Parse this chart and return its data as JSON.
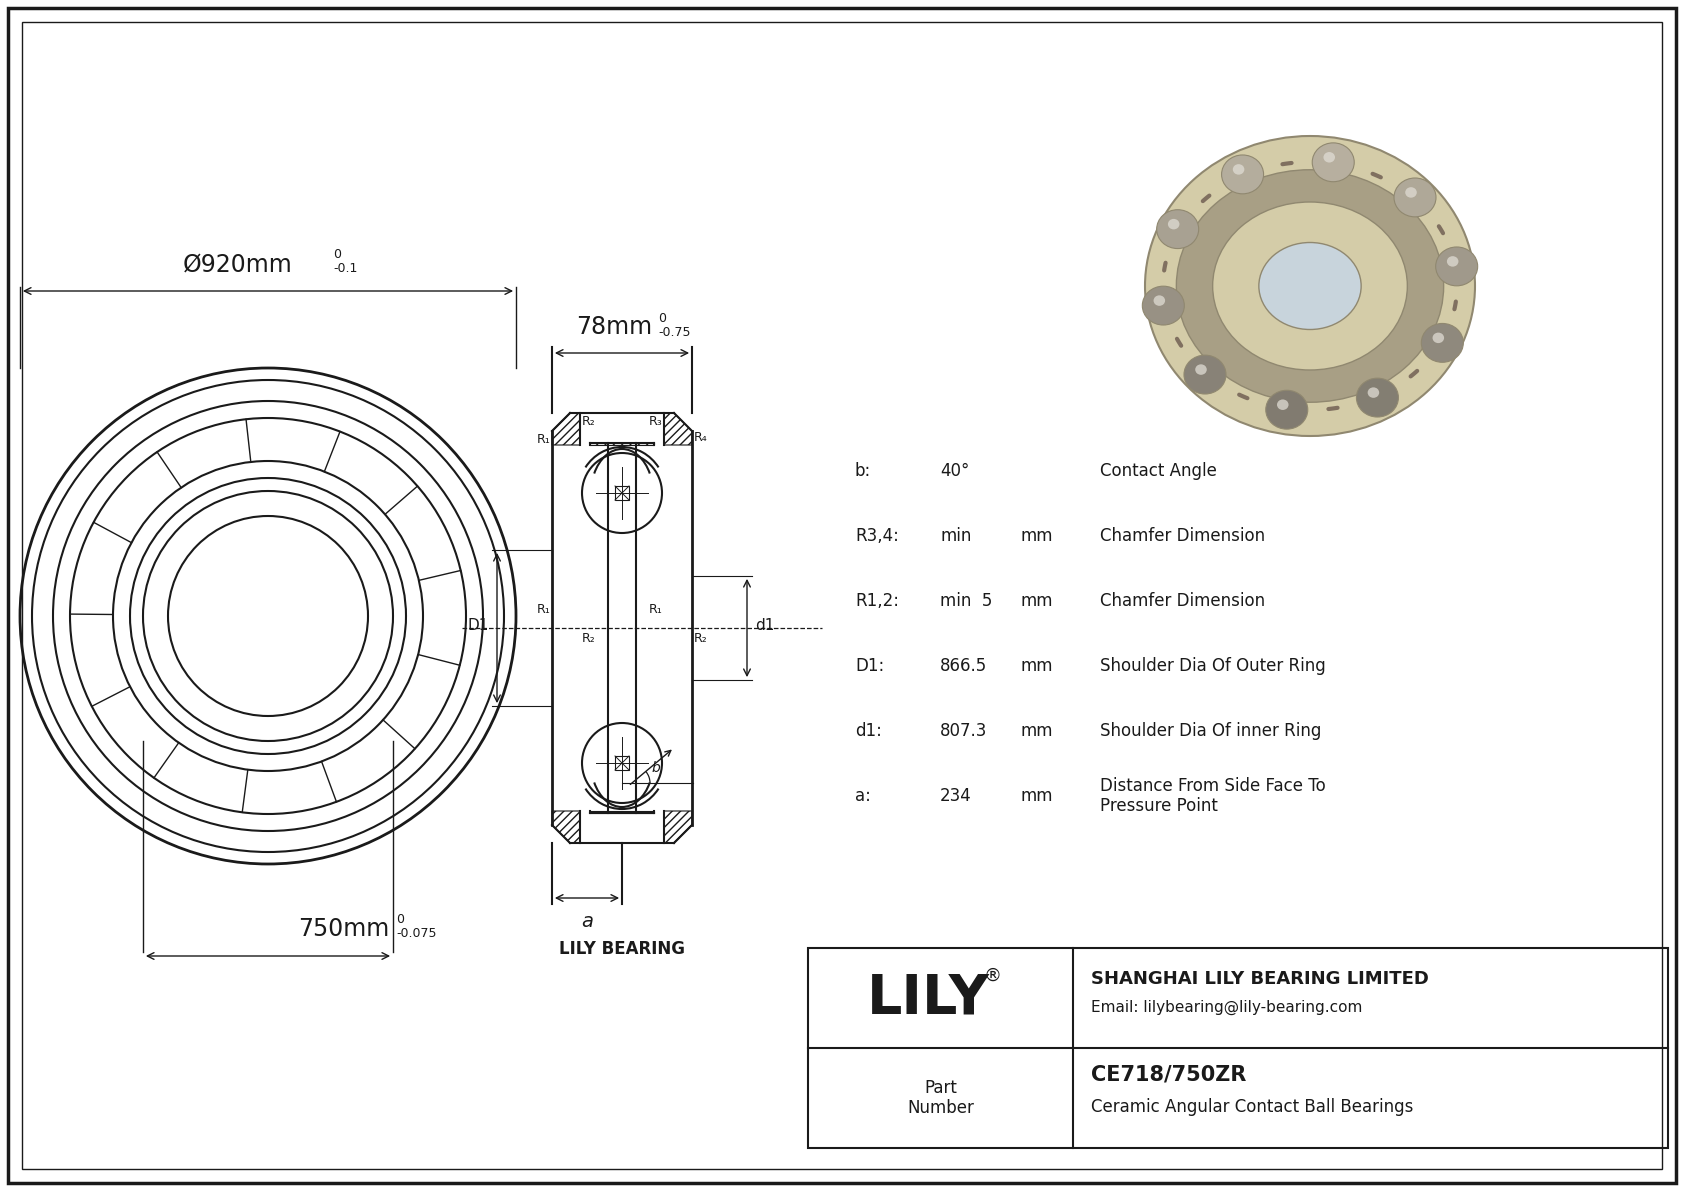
{
  "bg_color": "#ffffff",
  "line_color": "#1a1a1a",
  "title_text": "CE718/750ZR",
  "subtitle_text": "Ceramic Angular Contact Ball Bearings",
  "company_name": "SHANGHAI LILY BEARING LIMITED",
  "email": "Email: lilybearing@lily-bearing.com",
  "lily_text": "LILY",
  "part_number_label": "Part\nNumber",
  "dim_od": "Ø920mm",
  "dim_od_tol_upper": "0",
  "dim_od_tol": "-0.1",
  "dim_id": "750mm",
  "dim_id_tol_upper": "0",
  "dim_id_tol": "-0.075",
  "dim_width": "78mm",
  "dim_width_tol_upper": "0",
  "dim_width_tol": "-0.75",
  "params": [
    {
      "label": "b:",
      "value": "40°",
      "unit": "",
      "desc": "Contact Angle"
    },
    {
      "label": "R3,4:",
      "value": "min",
      "unit": "mm",
      "desc": "Chamfer Dimension"
    },
    {
      "label": "R1,2:",
      "value": "min  5",
      "unit": "mm",
      "desc": "Chamfer Dimension"
    },
    {
      "label": "D1:",
      "value": "866.5",
      "unit": "mm",
      "desc": "Shoulder Dia Of Outer Ring"
    },
    {
      "label": "d1:",
      "value": "807.3",
      "unit": "mm",
      "desc": "Shoulder Dia Of inner Ring"
    },
    {
      "label": "a:",
      "value": "234",
      "unit": "mm",
      "desc": "Distance From Side Face To\nPressure Point"
    }
  ],
  "lily_bearing_label": "LILY BEARING",
  "a_label": "a",
  "D1_label": "D1",
  "d1_label": "d1",
  "photo_color_outer": "#d4cca8",
  "photo_color_inner": "#bfb89a",
  "photo_color_bore": "#c8d4dc",
  "photo_color_ball": "#b0a888",
  "photo_color_shadow": "#908870"
}
